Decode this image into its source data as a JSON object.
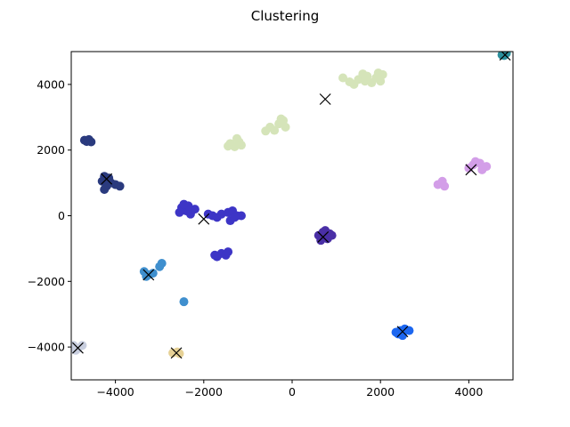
{
  "chart_data": {
    "type": "scatter",
    "title": "Clustering",
    "xlabel": "",
    "ylabel": "",
    "xlim": [
      -5000,
      5000
    ],
    "ylim": [
      -5000,
      5000
    ],
    "xticks": [
      -4000,
      -2000,
      0,
      2000,
      4000
    ],
    "yticks": [
      -4000,
      -2000,
      0,
      2000,
      4000
    ],
    "xtick_labels": [
      "−4000",
      "−2000",
      "0",
      "2000",
      "4000"
    ],
    "ytick_labels": [
      "−4000",
      "−2000",
      "0",
      "2000",
      "4000"
    ],
    "grid": false,
    "clusters": [
      {
        "color": "#d5e4b9",
        "points": [
          [
            1500,
            4150
          ],
          [
            1700,
            4250
          ],
          [
            1900,
            4200
          ],
          [
            2050,
            4300
          ],
          [
            1400,
            4000
          ],
          [
            1800,
            4050
          ],
          [
            2000,
            4100
          ],
          [
            1600,
            4320
          ],
          [
            1300,
            4080
          ],
          [
            1950,
            4350
          ],
          [
            1150,
            4200
          ],
          [
            1650,
            4100
          ],
          [
            -500,
            2700
          ],
          [
            -300,
            2800
          ],
          [
            -200,
            2900
          ],
          [
            -400,
            2600
          ],
          [
            -150,
            2700
          ],
          [
            -600,
            2580
          ],
          [
            -250,
            2950
          ],
          [
            -1400,
            2200
          ],
          [
            -1200,
            2250
          ],
          [
            -1300,
            2100
          ],
          [
            -1250,
            2350
          ],
          [
            -1450,
            2120
          ],
          [
            -1150,
            2150
          ]
        ]
      },
      {
        "color": "#2a3a7e",
        "points": [
          [
            -4700,
            2300
          ],
          [
            -4600,
            2320
          ],
          [
            -4550,
            2250
          ],
          [
            -4650,
            2260
          ],
          [
            -4300,
            1050
          ],
          [
            -4200,
            900
          ],
          [
            -4100,
            1000
          ],
          [
            -4000,
            950
          ],
          [
            -4250,
            800
          ],
          [
            -3900,
            900
          ],
          [
            -4150,
            1150
          ],
          [
            -4250,
            1200
          ]
        ]
      },
      {
        "color": "#3d35c6",
        "points": [
          [
            -2500,
            250
          ],
          [
            -2400,
            150
          ],
          [
            -2300,
            50
          ],
          [
            -2550,
            100
          ],
          [
            -2350,
            300
          ],
          [
            -2200,
            200
          ],
          [
            -2450,
            350
          ],
          [
            -1800,
            0
          ],
          [
            -1700,
            -50
          ],
          [
            -1900,
            50
          ],
          [
            -1600,
            50
          ],
          [
            -1450,
            100
          ],
          [
            -1350,
            150
          ],
          [
            -1250,
            0
          ],
          [
            -1150,
            0
          ],
          [
            -1400,
            -150
          ],
          [
            -1300,
            -50
          ],
          [
            -1700,
            -1250
          ],
          [
            -1600,
            -1150
          ],
          [
            -1500,
            -1200
          ],
          [
            -1450,
            -1100
          ],
          [
            -1750,
            -1200
          ]
        ]
      },
      {
        "color": "#4a2fa6",
        "points": [
          [
            600,
            -600
          ],
          [
            700,
            -500
          ],
          [
            800,
            -700
          ],
          [
            900,
            -600
          ],
          [
            650,
            -750
          ],
          [
            750,
            -450
          ],
          [
            850,
            -550
          ]
        ]
      },
      {
        "color": "#d39ee8",
        "points": [
          [
            3300,
            950
          ],
          [
            3450,
            900
          ],
          [
            3400,
            1050
          ],
          [
            4100,
            1550
          ],
          [
            4250,
            1600
          ],
          [
            4400,
            1500
          ],
          [
            4000,
            1450
          ],
          [
            4300,
            1400
          ],
          [
            4150,
            1650
          ]
        ]
      },
      {
        "color": "#3f8fce",
        "points": [
          [
            -3350,
            -1700
          ],
          [
            -3250,
            -1800
          ],
          [
            -3150,
            -1750
          ],
          [
            -3300,
            -1850
          ],
          [
            -3000,
            -1550
          ],
          [
            -2950,
            -1450
          ],
          [
            -2450,
            -2620
          ]
        ]
      },
      {
        "color": "#1d67f0",
        "points": [
          [
            2350,
            -3550
          ],
          [
            2450,
            -3500
          ],
          [
            2550,
            -3450
          ],
          [
            2650,
            -3500
          ],
          [
            2500,
            -3650
          ],
          [
            2400,
            -3600
          ]
        ]
      },
      {
        "color": "#c8cedf",
        "points": [
          [
            -4950,
            -3950
          ],
          [
            -4850,
            -4050
          ],
          [
            -4750,
            -3950
          ],
          [
            -4900,
            -4100
          ]
        ]
      },
      {
        "color": "#e6d196",
        "points": [
          [
            -2700,
            -4180
          ],
          [
            -2600,
            -4150
          ],
          [
            -2550,
            -4200
          ]
        ]
      },
      {
        "color": "#2b8f9c",
        "points": [
          [
            4750,
            4900
          ],
          [
            4850,
            4950
          ],
          [
            4800,
            4880
          ]
        ]
      }
    ],
    "centroids": [
      [
        750,
        3550
      ],
      [
        -4200,
        1120
      ],
      [
        -2000,
        -100
      ],
      [
        700,
        -650
      ],
      [
        4050,
        1400
      ],
      [
        -3250,
        -1800
      ],
      [
        2500,
        -3530
      ],
      [
        -4850,
        -4030
      ],
      [
        -2620,
        -4180
      ],
      [
        4820,
        4900
      ]
    ],
    "centroid_marker": "x",
    "centroid_color": "#000000"
  }
}
